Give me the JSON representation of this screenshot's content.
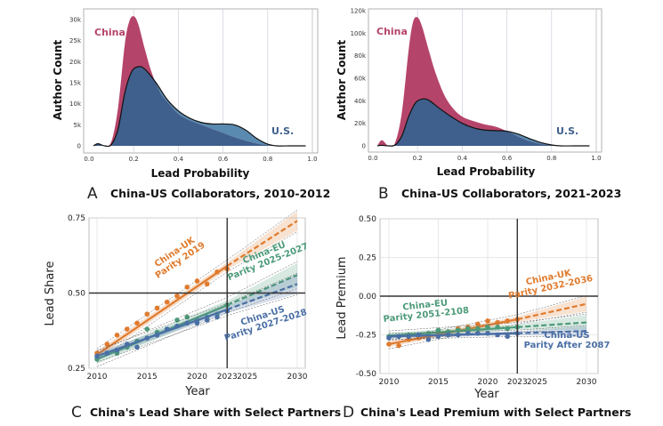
{
  "colors": {
    "china": "#b5446b",
    "us": "#3f5f8c",
    "us_light": "#5b8ab0",
    "uk": "#e07b2e",
    "eu": "#4c9a79",
    "us_line": "#4a6fa5"
  },
  "chart_data": [
    {
      "id": "A",
      "type": "area",
      "caption_letter": "A",
      "title": "China-US Collaborators, 2010-2012",
      "xlabel": "Lead Probability",
      "ylabel": "Author Count",
      "xlim": [
        0.0,
        1.0
      ],
      "ylim": [
        0,
        30000
      ],
      "xticks": [
        "0.0",
        "0.2",
        "0.4",
        "0.6",
        "0.8",
        "1.0"
      ],
      "xtick_values": [
        0.0,
        0.2,
        0.4,
        0.6,
        0.8,
        1.0
      ],
      "yticks": [
        "0",
        "5k",
        "10k",
        "15k",
        "20k",
        "25k",
        "30k"
      ],
      "ytick_values": [
        0,
        5000,
        10000,
        15000,
        20000,
        25000,
        30000
      ],
      "grid": true,
      "series": [
        {
          "name": "China",
          "x": [
            0.02,
            0.04,
            0.07,
            0.1,
            0.13,
            0.16,
            0.18,
            0.2,
            0.22,
            0.25,
            0.28,
            0.32,
            0.36,
            0.4,
            0.45,
            0.5,
            0.55,
            0.6,
            0.65,
            0.7,
            0.75,
            0.8,
            0.82
          ],
          "values": [
            0,
            600,
            0,
            1000,
            9000,
            24000,
            29500,
            30800,
            29000,
            23000,
            17500,
            12500,
            9800,
            7500,
            6000,
            5000,
            4000,
            3000,
            2000,
            1200,
            500,
            100,
            0
          ]
        },
        {
          "name": "U.S.",
          "x": [
            0.02,
            0.04,
            0.07,
            0.1,
            0.13,
            0.16,
            0.19,
            0.22,
            0.25,
            0.3,
            0.35,
            0.4,
            0.45,
            0.5,
            0.55,
            0.6,
            0.65,
            0.7,
            0.75,
            0.8,
            0.84,
            0.9,
            0.97
          ],
          "values": [
            0,
            500,
            0,
            300,
            4000,
            12500,
            17500,
            18800,
            18200,
            15000,
            11000,
            8300,
            6600,
            5600,
            5200,
            5200,
            5000,
            3800,
            1800,
            400,
            0,
            0,
            0
          ]
        }
      ],
      "annotations": [
        "China",
        "U.S."
      ]
    },
    {
      "id": "B",
      "type": "area",
      "caption_letter": "B",
      "title": "China-US Collaborators, 2021-2023",
      "xlabel": "Lead Probability",
      "ylabel": "Author Count",
      "xlim": [
        0.0,
        1.0
      ],
      "ylim": [
        0,
        120000
      ],
      "xticks": [
        "0.0",
        "0.2",
        "0.4",
        "0.6",
        "0.8",
        "1.0"
      ],
      "xtick_values": [
        0.0,
        0.2,
        0.4,
        0.6,
        0.8,
        1.0
      ],
      "yticks": [
        "0",
        "20k",
        "40k",
        "60k",
        "80k",
        "100k",
        "120k"
      ],
      "ytick_values": [
        0,
        20000,
        40000,
        60000,
        80000,
        100000,
        120000
      ],
      "grid": true,
      "series": [
        {
          "name": "China",
          "x": [
            0.02,
            0.04,
            0.07,
            0.1,
            0.13,
            0.16,
            0.18,
            0.2,
            0.22,
            0.25,
            0.28,
            0.32,
            0.36,
            0.4,
            0.45,
            0.5,
            0.55,
            0.6,
            0.65,
            0.7,
            0.75,
            0.8,
            0.82
          ],
          "values": [
            0,
            5000,
            0,
            3000,
            30000,
            85000,
            110000,
            114000,
            106000,
            85000,
            65000,
            45000,
            33000,
            26000,
            22000,
            19000,
            17000,
            13000,
            8000,
            4000,
            1500,
            300,
            0
          ]
        },
        {
          "name": "U.S.",
          "x": [
            0.02,
            0.04,
            0.07,
            0.1,
            0.13,
            0.16,
            0.19,
            0.22,
            0.25,
            0.3,
            0.35,
            0.4,
            0.45,
            0.5,
            0.55,
            0.6,
            0.65,
            0.7,
            0.75,
            0.8,
            0.84,
            0.9,
            0.97
          ],
          "values": [
            0,
            500,
            0,
            800,
            9000,
            26000,
            38000,
            41500,
            40500,
            33000,
            26000,
            20000,
            16000,
            14000,
            13500,
            13000,
            10500,
            6500,
            3000,
            800,
            0,
            0,
            0
          ]
        }
      ],
      "annotations": [
        "China",
        "U.S."
      ]
    },
    {
      "id": "C",
      "type": "line",
      "caption_letter": "C",
      "title": "China's Lead Share with Select Partners",
      "xlabel": "Year",
      "ylabel": "Lead Share",
      "xlim": [
        2010,
        2030
      ],
      "ylim": [
        0.25,
        0.75
      ],
      "xticks": [
        "2010",
        "2015",
        "2020",
        "2025",
        "2030"
      ],
      "xtick_values": [
        2010,
        2015,
        2020,
        2025,
        2030
      ],
      "highlight_tick": "2023",
      "yticks": [
        "0.25",
        "0.50",
        "0.75"
      ],
      "ytick_values": [
        0.25,
        0.5,
        0.75
      ],
      "reference_lines": {
        "x": 2023,
        "y": 0.5
      },
      "grid": true,
      "series": [
        {
          "name": "China-UK",
          "annotation": [
            "China-UK",
            "Parity 2019"
          ],
          "x": [
            2010,
            2011,
            2012,
            2013,
            2014,
            2015,
            2016,
            2017,
            2018,
            2019,
            2020,
            2021,
            2022,
            2023
          ],
          "values": [
            0.3,
            0.33,
            0.36,
            0.38,
            0.4,
            0.43,
            0.45,
            0.47,
            0.49,
            0.52,
            0.54,
            0.53,
            0.57,
            0.58
          ],
          "fit_start": 0.295,
          "fit_2023": 0.59,
          "proj_2030": 0.74,
          "band": 0.02
        },
        {
          "name": "China-EU",
          "annotation": [
            "China-EU",
            "Parity 2025-2027"
          ],
          "x": [
            2010,
            2011,
            2012,
            2013,
            2014,
            2015,
            2016,
            2017,
            2018,
            2019,
            2020,
            2021,
            2022,
            2023
          ],
          "values": [
            0.28,
            0.3,
            0.3,
            0.32,
            0.34,
            0.38,
            0.37,
            0.38,
            0.41,
            0.42,
            0.41,
            0.42,
            0.43,
            0.46
          ],
          "fit_start": 0.28,
          "fit_2023": 0.46,
          "proj_2030": 0.56,
          "band": 0.025
        },
        {
          "name": "China-US",
          "annotation": [
            "China-US",
            "Parity 2027-2028"
          ],
          "x": [
            2010,
            2011,
            2012,
            2013,
            2014,
            2015,
            2016,
            2017,
            2018,
            2019,
            2020,
            2021,
            2022,
            2023
          ],
          "values": [
            0.29,
            0.3,
            0.31,
            0.33,
            0.32,
            0.35,
            0.36,
            0.38,
            0.39,
            0.4,
            0.4,
            0.41,
            0.42,
            0.44
          ],
          "fit_start": 0.29,
          "fit_2023": 0.445,
          "proj_2030": 0.53,
          "band": 0.02
        }
      ]
    },
    {
      "id": "D",
      "type": "line",
      "caption_letter": "D",
      "title": "China's Lead Premium with Select Partners",
      "xlabel": "Year",
      "ylabel": "Lead Premium",
      "xlim": [
        2010,
        2030
      ],
      "ylim": [
        -0.5,
        0.5
      ],
      "xticks": [
        "2010",
        "2015",
        "2020",
        "2025",
        "2030"
      ],
      "xtick_values": [
        2010,
        2015,
        2020,
        2025,
        2030
      ],
      "highlight_tick": "2023",
      "yticks": [
        "-0.50",
        "-0.25",
        "0.00",
        "0.25",
        "0.50"
      ],
      "ytick_values": [
        -0.5,
        -0.25,
        0.0,
        0.25,
        0.5
      ],
      "reference_lines": {
        "x": 2023,
        "y": 0.0
      },
      "grid": true,
      "series": [
        {
          "name": "China-UK",
          "annotation": [
            "China-UK",
            "Parity 2032-2036"
          ],
          "x": [
            2010,
            2011,
            2012,
            2013,
            2014,
            2015,
            2016,
            2017,
            2018,
            2019,
            2020,
            2021,
            2022,
            2023
          ],
          "values": [
            -0.31,
            -0.32,
            -0.28,
            -0.27,
            -0.25,
            -0.24,
            -0.23,
            -0.21,
            -0.2,
            -0.18,
            -0.16,
            -0.17,
            -0.16,
            -0.15
          ],
          "fit_start": -0.31,
          "fit_2023": -0.15,
          "proj_2030": -0.05,
          "band": 0.03
        },
        {
          "name": "China-EU",
          "annotation": [
            "China-EU",
            "Parity 2051-2108"
          ],
          "x": [
            2010,
            2011,
            2012,
            2013,
            2014,
            2015,
            2016,
            2017,
            2018,
            2019,
            2020,
            2021,
            2022,
            2023
          ],
          "values": [
            -0.26,
            -0.26,
            -0.25,
            -0.25,
            -0.24,
            -0.22,
            -0.23,
            -0.22,
            -0.21,
            -0.21,
            -0.2,
            -0.2,
            -0.21,
            -0.2
          ],
          "fit_start": -0.255,
          "fit_2023": -0.2,
          "proj_2030": -0.17,
          "band": 0.03
        },
        {
          "name": "China-US",
          "annotation": [
            "China-US",
            "Parity After 2087"
          ],
          "x": [
            2010,
            2011,
            2012,
            2013,
            2014,
            2015,
            2016,
            2017,
            2018,
            2019,
            2020,
            2021,
            2022,
            2023
          ],
          "values": [
            -0.27,
            -0.26,
            -0.26,
            -0.25,
            -0.28,
            -0.26,
            -0.25,
            -0.25,
            -0.24,
            -0.24,
            -0.24,
            -0.25,
            -0.26,
            -0.24
          ],
          "fit_start": -0.26,
          "fit_2023": -0.24,
          "proj_2030": -0.225,
          "band": 0.02
        }
      ]
    }
  ]
}
